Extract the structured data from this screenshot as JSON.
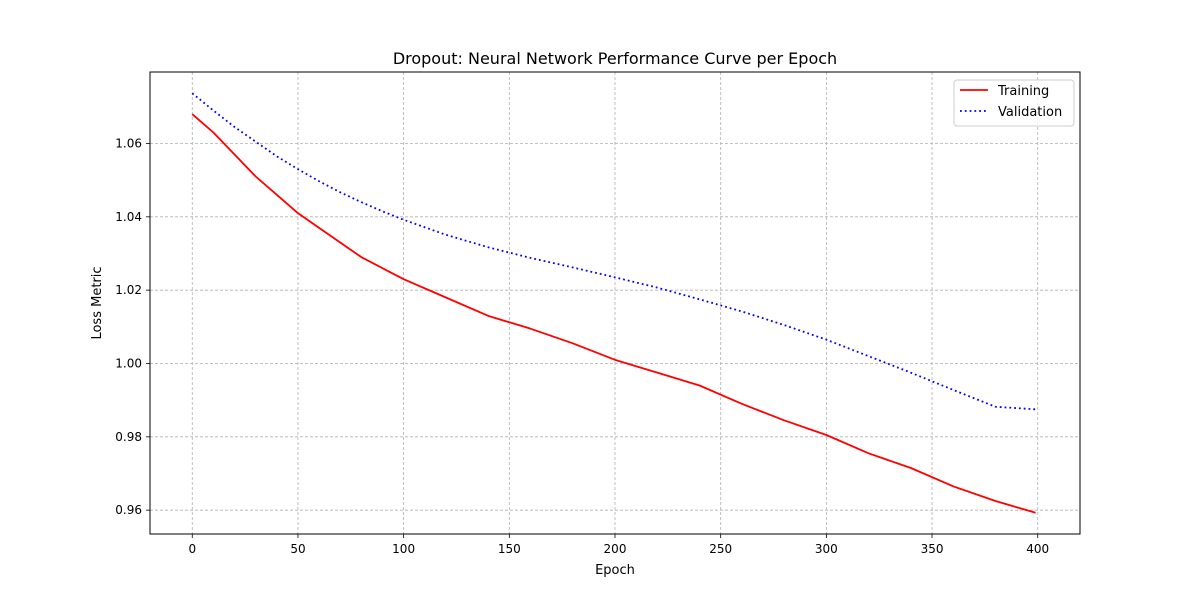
{
  "chart_data": {
    "type": "line",
    "title": "Dropout: Neural Network Performance Curve per Epoch",
    "xlabel": "Epoch",
    "ylabel": "Loss Metric",
    "xlim": [
      -20,
      420
    ],
    "ylim": [
      0.9535,
      1.0795
    ],
    "xticks": [
      0,
      50,
      100,
      150,
      200,
      250,
      300,
      350,
      400
    ],
    "yticks": [
      0.96,
      0.98,
      1.0,
      1.02,
      1.04,
      1.06
    ],
    "ytick_labels": [
      "0.96",
      "0.98",
      "1.00",
      "1.02",
      "1.04",
      "1.06"
    ],
    "grid": true,
    "legend_position": "top-right",
    "series": [
      {
        "name": "Training",
        "color": "#ff0000",
        "style": "solid",
        "x": [
          0,
          10,
          20,
          30,
          40,
          50,
          60,
          70,
          80,
          90,
          100,
          120,
          140,
          160,
          180,
          200,
          220,
          240,
          260,
          280,
          300,
          320,
          340,
          360,
          380,
          399
        ],
        "y": [
          1.068,
          1.063,
          1.057,
          1.051,
          1.046,
          1.041,
          1.037,
          1.033,
          1.029,
          1.026,
          1.023,
          1.018,
          1.013,
          1.0095,
          1.0055,
          1.001,
          0.9975,
          0.994,
          0.989,
          0.9845,
          0.9805,
          0.9755,
          0.9715,
          0.9665,
          0.9625,
          0.9593
        ]
      },
      {
        "name": "Validation",
        "color": "#0000ff",
        "style": "dotted",
        "x": [
          0,
          10,
          20,
          30,
          40,
          50,
          60,
          70,
          80,
          90,
          100,
          120,
          140,
          160,
          180,
          200,
          220,
          240,
          260,
          280,
          300,
          320,
          340,
          360,
          380,
          399
        ],
        "y": [
          1.0737,
          1.069,
          1.0645,
          1.0605,
          1.0565,
          1.053,
          1.0497,
          1.0467,
          1.044,
          1.0415,
          1.0392,
          1.0351,
          1.0317,
          1.0288,
          1.0262,
          1.0235,
          1.0207,
          1.0175,
          1.0142,
          1.0105,
          1.0065,
          1.002,
          0.9975,
          0.9928,
          0.9882,
          0.9875
        ]
      }
    ]
  }
}
